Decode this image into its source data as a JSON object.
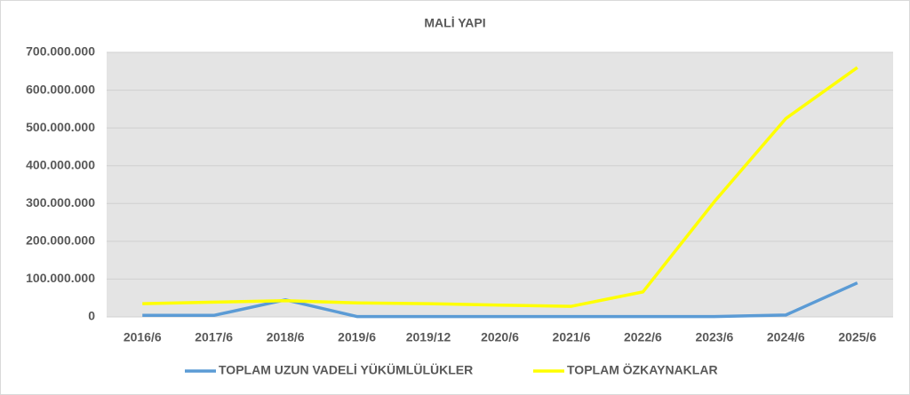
{
  "chart_data": {
    "type": "line",
    "title": "MALİ YAPI",
    "categories": [
      "2016/6",
      "2017/6",
      "2018/6",
      "2019/6",
      "2019/12",
      "2020/6",
      "2021/6",
      "2022/6",
      "2023/6",
      "2024/6",
      "2025/6"
    ],
    "series": [
      {
        "name": "TOPLAM UZUN VADELİ YÜKÜMLÜLÜKLER",
        "color": "#5b9bd5",
        "values": [
          4000000,
          4000000,
          45000000,
          1000000,
          1000000,
          1000000,
          1000000,
          1000000,
          1000000,
          5000000,
          90000000
        ]
      },
      {
        "name": "TOPLAM ÖZKAYNAKLAR",
        "color": "#ffff00",
        "values": [
          35000000,
          39000000,
          43000000,
          37000000,
          35000000,
          31000000,
          28000000,
          66000000,
          305000000,
          525000000,
          660000000
        ]
      }
    ],
    "ylim": [
      0,
      700000000
    ],
    "yticks": [
      0,
      {
        "value": 100000000,
        "label": "100.000.000"
      },
      {
        "value": 200000000,
        "label": "200.000.000"
      },
      {
        "value": 300000000,
        "label": "300.000.000"
      },
      {
        "value": 400000000,
        "label": "400.000.000"
      },
      {
        "value": 500000000,
        "label": "500.000.000"
      },
      {
        "value": 600000000,
        "label": "600.000.000"
      },
      {
        "value": 700000000,
        "label": "700.000.000"
      }
    ],
    "grid": true,
    "legend": "bottom"
  }
}
